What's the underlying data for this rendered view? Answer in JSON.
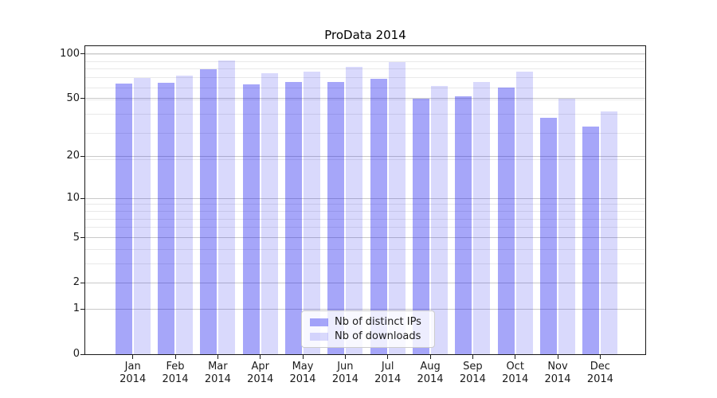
{
  "title": "ProData 2014",
  "legend": {
    "items": [
      {
        "label": "Nb of distinct IPs",
        "color": "rgba(0,0,238,0.35)"
      },
      {
        "label": "Nb of downloads",
        "color": "rgba(0,0,238,0.15)"
      }
    ],
    "position": "lower center"
  },
  "colors": {
    "bar_distinct_ips": "rgba(0,0,238,0.35)",
    "bar_downloads": "rgba(0,0,238,0.15)",
    "grid_major": "#c9c9c9",
    "grid_minor": "#e9e9e9",
    "axis": "#1a1a1a",
    "background": "#ffffff"
  },
  "chart_data": {
    "type": "bar",
    "title": "ProData 2014",
    "xlabel": "",
    "ylabel": "",
    "yscale": "log(value+1)",
    "ylim": [
      0,
      112
    ],
    "grid": true,
    "legend_position": "lower center",
    "categories": [
      "Jan",
      "Feb",
      "Mar",
      "Apr",
      "May",
      "Jun",
      "Jul",
      "Aug",
      "Sep",
      "Oct",
      "Nov",
      "Dec"
    ],
    "category_year": "2014",
    "y_ticks": [
      0,
      1,
      2,
      5,
      10,
      20,
      50,
      100
    ],
    "y_minor_ticks": [
      3,
      4,
      6,
      7,
      8,
      9,
      19,
      29,
      39,
      49,
      59,
      69,
      79,
      89,
      99
    ],
    "series": [
      {
        "name": "Nb of distinct IPs",
        "color": "rgba(0,0,238,0.35)",
        "values": [
          63,
          64,
          79,
          62,
          65,
          65,
          68,
          50,
          52,
          59,
          37,
          32
        ]
      },
      {
        "name": "Nb of downloads",
        "color": "rgba(0,0,238,0.15)",
        "values": [
          69,
          71,
          90,
          74,
          76,
          82,
          88,
          61,
          65,
          76,
          50,
          41
        ]
      }
    ]
  }
}
